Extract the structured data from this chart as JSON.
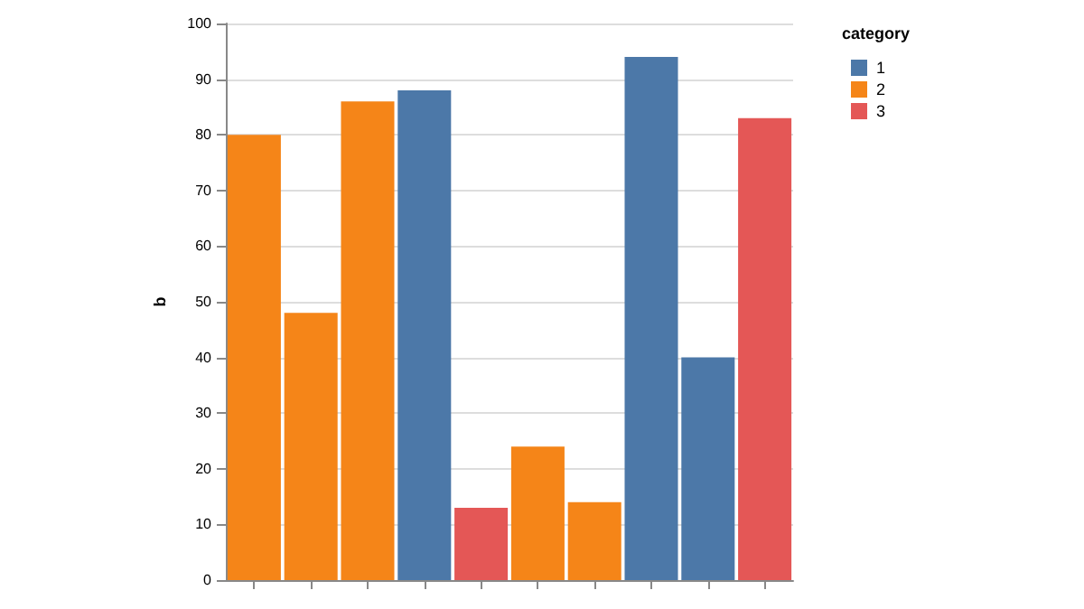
{
  "chart_data": {
    "type": "bar",
    "ylabel": "b",
    "legend_title": "category",
    "categories": [
      null,
      null,
      null,
      null,
      null,
      null,
      null,
      null,
      null,
      null
    ],
    "series": [
      {
        "name": "1",
        "color": "#4c78a8",
        "values": [
          null,
          null,
          null,
          88,
          null,
          null,
          null,
          94,
          40,
          null
        ]
      },
      {
        "name": "2",
        "color": "#f58518",
        "values": [
          80,
          48,
          86,
          null,
          null,
          24,
          14,
          null,
          null,
          null
        ]
      },
      {
        "name": "3",
        "color": "#e45756",
        "values": [
          null,
          null,
          null,
          null,
          13,
          null,
          null,
          null,
          null,
          83
        ]
      }
    ],
    "ylim": [
      0,
      100
    ],
    "yticks": [
      0,
      10,
      20,
      30,
      40,
      50,
      60,
      70,
      80,
      90,
      100
    ],
    "grid": "y",
    "legend": "top right"
  }
}
